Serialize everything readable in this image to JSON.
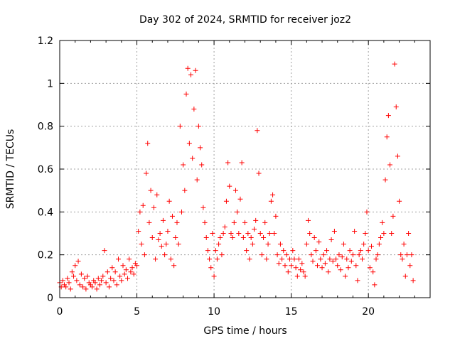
{
  "chart_data": {
    "type": "scatter",
    "title": "Day 302 of 2024, SRMTID for receiver joz2",
    "xlabel": "GPS time / hours",
    "ylabel": "SRMTID / TECUs",
    "xlim": [
      0,
      24
    ],
    "ylim": [
      0,
      1.2
    ],
    "x_ticks": [
      0,
      5,
      10,
      15,
      20
    ],
    "y_ticks": [
      0,
      0.2,
      0.4,
      0.6,
      0.8,
      1,
      1.2
    ],
    "x_tick_labels": [
      "0",
      "5",
      "10",
      "15",
      "20"
    ],
    "y_tick_labels": [
      "0",
      "0.2",
      "0.4",
      "0.6",
      "0.8",
      "1",
      "1.2"
    ],
    "grid": true,
    "marker": "plus",
    "color": "#ff0000",
    "series": [
      {
        "name": "SRMTID",
        "points": [
          [
            0.0,
            0.07
          ],
          [
            0.1,
            0.05
          ],
          [
            0.2,
            0.08
          ],
          [
            0.3,
            0.06
          ],
          [
            0.4,
            0.05
          ],
          [
            0.5,
            0.09
          ],
          [
            0.6,
            0.07
          ],
          [
            0.7,
            0.04
          ],
          [
            0.8,
            0.12
          ],
          [
            0.9,
            0.1
          ],
          [
            1.0,
            0.15
          ],
          [
            1.1,
            0.08
          ],
          [
            1.2,
            0.17
          ],
          [
            1.3,
            0.06
          ],
          [
            1.4,
            0.11
          ],
          [
            1.5,
            0.05
          ],
          [
            1.6,
            0.09
          ],
          [
            1.7,
            0.04
          ],
          [
            1.8,
            0.1
          ],
          [
            1.9,
            0.07
          ],
          [
            2.0,
            0.06
          ],
          [
            2.1,
            0.05
          ],
          [
            2.2,
            0.08
          ],
          [
            2.3,
            0.07
          ],
          [
            2.4,
            0.04
          ],
          [
            2.5,
            0.09
          ],
          [
            2.6,
            0.06
          ],
          [
            2.7,
            0.08
          ],
          [
            2.8,
            0.1
          ],
          [
            2.9,
            0.22
          ],
          [
            3.0,
            0.07
          ],
          [
            3.1,
            0.12
          ],
          [
            3.2,
            0.05
          ],
          [
            3.3,
            0.09
          ],
          [
            3.4,
            0.14
          ],
          [
            3.5,
            0.08
          ],
          [
            3.6,
            0.12
          ],
          [
            3.7,
            0.06
          ],
          [
            3.8,
            0.18
          ],
          [
            3.9,
            0.1
          ],
          [
            4.0,
            0.08
          ],
          [
            4.1,
            0.15
          ],
          [
            4.2,
            0.11
          ],
          [
            4.3,
            0.13
          ],
          [
            4.4,
            0.09
          ],
          [
            4.5,
            0.18
          ],
          [
            4.6,
            0.12
          ],
          [
            4.7,
            0.14
          ],
          [
            4.8,
            0.11
          ],
          [
            4.9,
            0.16
          ],
          [
            5.0,
            0.15
          ],
          [
            5.1,
            0.31
          ],
          [
            5.2,
            0.4
          ],
          [
            5.3,
            0.25
          ],
          [
            5.4,
            0.43
          ],
          [
            5.5,
            0.2
          ],
          [
            5.6,
            0.58
          ],
          [
            5.7,
            0.72
          ],
          [
            5.8,
            0.35
          ],
          [
            5.9,
            0.5
          ],
          [
            6.0,
            0.28
          ],
          [
            6.1,
            0.42
          ],
          [
            6.2,
            0.18
          ],
          [
            6.3,
            0.48
          ],
          [
            6.4,
            0.27
          ],
          [
            6.5,
            0.3
          ],
          [
            6.6,
            0.24
          ],
          [
            6.7,
            0.36
          ],
          [
            6.8,
            0.2
          ],
          [
            6.9,
            0.25
          ],
          [
            7.0,
            0.31
          ],
          [
            7.1,
            0.45
          ],
          [
            7.2,
            0.18
          ],
          [
            7.3,
            0.38
          ],
          [
            7.4,
            0.15
          ],
          [
            7.5,
            0.28
          ],
          [
            7.6,
            0.35
          ],
          [
            7.7,
            0.25
          ],
          [
            7.8,
            0.8
          ],
          [
            7.9,
            0.4
          ],
          [
            8.0,
            0.62
          ],
          [
            8.1,
            0.5
          ],
          [
            8.2,
            0.95
          ],
          [
            8.3,
            1.07
          ],
          [
            8.4,
            0.72
          ],
          [
            8.5,
            1.04
          ],
          [
            8.6,
            0.65
          ],
          [
            8.7,
            0.88
          ],
          [
            8.8,
            1.06
          ],
          [
            8.9,
            0.55
          ],
          [
            9.0,
            0.8
          ],
          [
            9.1,
            0.7
          ],
          [
            9.2,
            0.62
          ],
          [
            9.3,
            0.42
          ],
          [
            9.4,
            0.35
          ],
          [
            9.5,
            0.28
          ],
          [
            9.6,
            0.22
          ],
          [
            9.7,
            0.18
          ],
          [
            9.8,
            0.14
          ],
          [
            9.9,
            0.3
          ],
          [
            10.0,
            0.1
          ],
          [
            10.1,
            0.22
          ],
          [
            10.2,
            0.18
          ],
          [
            10.3,
            0.25
          ],
          [
            10.4,
            0.28
          ],
          [
            10.5,
            0.2
          ],
          [
            10.6,
            0.3
          ],
          [
            10.7,
            0.33
          ],
          [
            10.8,
            0.45
          ],
          [
            10.9,
            0.63
          ],
          [
            11.0,
            0.52
          ],
          [
            11.1,
            0.3
          ],
          [
            11.2,
            0.28
          ],
          [
            11.3,
            0.35
          ],
          [
            11.4,
            0.5
          ],
          [
            11.5,
            0.4
          ],
          [
            11.6,
            0.3
          ],
          [
            11.7,
            0.46
          ],
          [
            11.8,
            0.63
          ],
          [
            11.9,
            0.28
          ],
          [
            12.0,
            0.35
          ],
          [
            12.1,
            0.22
          ],
          [
            12.2,
            0.3
          ],
          [
            12.3,
            0.18
          ],
          [
            12.4,
            0.28
          ],
          [
            12.5,
            0.25
          ],
          [
            12.6,
            0.32
          ],
          [
            12.7,
            0.36
          ],
          [
            12.8,
            0.78
          ],
          [
            12.9,
            0.58
          ],
          [
            13.0,
            0.3
          ],
          [
            13.1,
            0.2
          ],
          [
            13.2,
            0.28
          ],
          [
            13.3,
            0.35
          ],
          [
            13.4,
            0.18
          ],
          [
            13.5,
            0.25
          ],
          [
            13.6,
            0.3
          ],
          [
            13.7,
            0.45
          ],
          [
            13.8,
            0.48
          ],
          [
            13.9,
            0.3
          ],
          [
            14.0,
            0.38
          ],
          [
            14.1,
            0.2
          ],
          [
            14.2,
            0.16
          ],
          [
            14.3,
            0.25
          ],
          [
            14.4,
            0.18
          ],
          [
            14.5,
            0.22
          ],
          [
            14.6,
            0.15
          ],
          [
            14.7,
            0.2
          ],
          [
            14.8,
            0.12
          ],
          [
            14.9,
            0.18
          ],
          [
            15.0,
            0.15
          ],
          [
            15.1,
            0.22
          ],
          [
            15.2,
            0.18
          ],
          [
            15.3,
            0.14
          ],
          [
            15.4,
            0.1
          ],
          [
            15.5,
            0.18
          ],
          [
            15.6,
            0.13
          ],
          [
            15.7,
            0.16
          ],
          [
            15.8,
            0.12
          ],
          [
            15.9,
            0.1
          ],
          [
            16.0,
            0.25
          ],
          [
            16.1,
            0.36
          ],
          [
            16.2,
            0.3
          ],
          [
            16.3,
            0.2
          ],
          [
            16.4,
            0.17
          ],
          [
            16.5,
            0.28
          ],
          [
            16.6,
            0.22
          ],
          [
            16.7,
            0.15
          ],
          [
            16.8,
            0.26
          ],
          [
            16.9,
            0.18
          ],
          [
            17.0,
            0.14
          ],
          [
            17.1,
            0.2
          ],
          [
            17.2,
            0.16
          ],
          [
            17.3,
            0.22
          ],
          [
            17.4,
            0.12
          ],
          [
            17.5,
            0.18
          ],
          [
            17.6,
            0.27
          ],
          [
            17.7,
            0.17
          ],
          [
            17.8,
            0.31
          ],
          [
            17.9,
            0.18
          ],
          [
            18.0,
            0.15
          ],
          [
            18.1,
            0.2
          ],
          [
            18.2,
            0.13
          ],
          [
            18.3,
            0.19
          ],
          [
            18.4,
            0.25
          ],
          [
            18.5,
            0.1
          ],
          [
            18.6,
            0.18
          ],
          [
            18.7,
            0.14
          ],
          [
            18.8,
            0.22
          ],
          [
            18.9,
            0.17
          ],
          [
            19.0,
            0.2
          ],
          [
            19.1,
            0.31
          ],
          [
            19.2,
            0.15
          ],
          [
            19.3,
            0.08
          ],
          [
            19.4,
            0.2
          ],
          [
            19.5,
            0.22
          ],
          [
            19.6,
            0.18
          ],
          [
            19.7,
            0.25
          ],
          [
            19.8,
            0.3
          ],
          [
            19.9,
            0.4
          ],
          [
            20.0,
            0.22
          ],
          [
            20.1,
            0.14
          ],
          [
            20.2,
            0.24
          ],
          [
            20.3,
            0.12
          ],
          [
            20.4,
            0.06
          ],
          [
            20.5,
            0.18
          ],
          [
            20.6,
            0.2
          ],
          [
            20.7,
            0.25
          ],
          [
            20.8,
            0.28
          ],
          [
            20.9,
            0.35
          ],
          [
            21.0,
            0.3
          ],
          [
            21.1,
            0.55
          ],
          [
            21.2,
            0.75
          ],
          [
            21.3,
            0.85
          ],
          [
            21.4,
            0.62
          ],
          [
            21.5,
            0.3
          ],
          [
            21.6,
            0.38
          ],
          [
            21.7,
            1.09
          ],
          [
            21.8,
            0.89
          ],
          [
            21.9,
            0.66
          ],
          [
            22.0,
            0.45
          ],
          [
            22.1,
            0.2
          ],
          [
            22.2,
            0.18
          ],
          [
            22.3,
            0.25
          ],
          [
            22.4,
            0.1
          ],
          [
            22.5,
            0.2
          ],
          [
            22.6,
            0.3
          ],
          [
            22.7,
            0.15
          ],
          [
            22.8,
            0.2
          ],
          [
            22.9,
            0.08
          ]
        ]
      }
    ]
  }
}
